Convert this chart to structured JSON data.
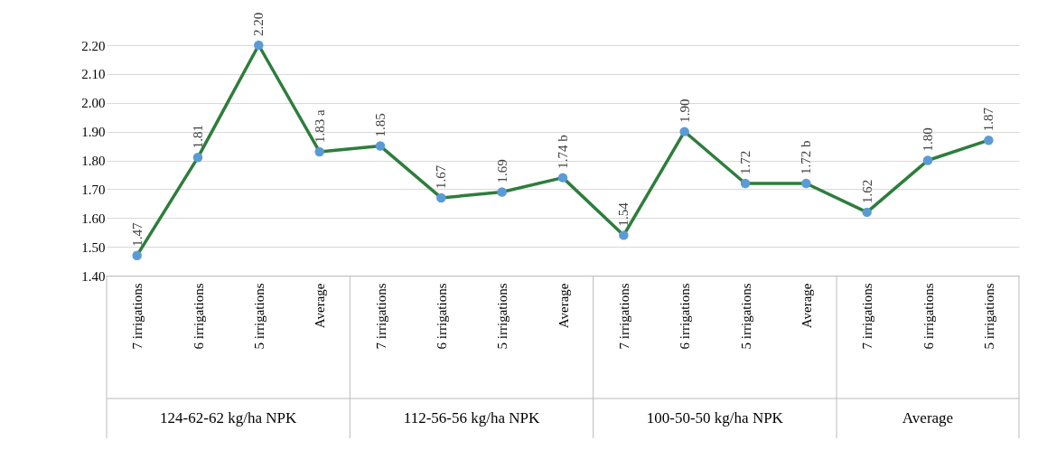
{
  "chart_data": {
    "type": "line",
    "categories": [
      "7 irrigations",
      "6 irrigations",
      "5 irrigations",
      "Average",
      "7 irrigations",
      "6 irrigations",
      "5 irrigations",
      "Average",
      "7 irrigations",
      "6 irrigations",
      "5 irrigations",
      "Average",
      "7 irrigations",
      "6 irrigations",
      "5 irrigations"
    ],
    "series": [
      {
        "color": "#2e7d3c",
        "colors": [
          "#5b9bd5",
          "#5b9bd5",
          "#5b9bd5",
          "#5b9bd5",
          "#5b9bd5",
          "#5b9bd5",
          "#5b9bd5",
          "#5b9bd5",
          "#5b9bd5",
          "#5b9bd5",
          "#5b9bd5",
          "#5b9bd5",
          "#5b9bd5",
          "#5b9bd5",
          "#5b9bd5"
        ],
        "values": [
          1.47,
          1.81,
          2.2,
          1.83,
          1.85,
          1.67,
          1.69,
          1.74,
          1.54,
          1.9,
          1.72,
          1.72,
          1.62,
          1.8,
          1.87
        ],
        "value_labels": [
          "1.47",
          "1.81",
          "2.20",
          "1.83 a",
          "1.85",
          "1.67",
          "1.69",
          "1.74 b",
          "1.54",
          "1.90",
          "1.72",
          "1.72 b",
          "1.62",
          "1.80",
          "1.87"
        ]
      }
    ],
    "annotations": [
      "124-62-62 kg/ha NPK",
      "112-56-56 kg/ha NPK",
      "100-50-50 kg/ha NPK",
      "Average"
    ],
    "ylim": [
      1.4,
      2.2
    ],
    "yticks": [
      {
        "value": 1.4,
        "label": "1.40"
      },
      {
        "value": 1.5,
        "label": "1.50"
      },
      {
        "value": 1.6,
        "label": "1.60"
      },
      {
        "value": 1.7,
        "label": "1.70"
      },
      {
        "value": 1.8,
        "label": "1.80"
      },
      {
        "value": 1.9,
        "label": "1.90"
      },
      {
        "value": 2.0,
        "label": "2.00"
      },
      {
        "value": 2.1,
        "label": "2.10"
      },
      {
        "value": 2.2,
        "label": "2.20"
      }
    ],
    "grid": "y",
    "marker": "circle",
    "line_style": "solid"
  }
}
